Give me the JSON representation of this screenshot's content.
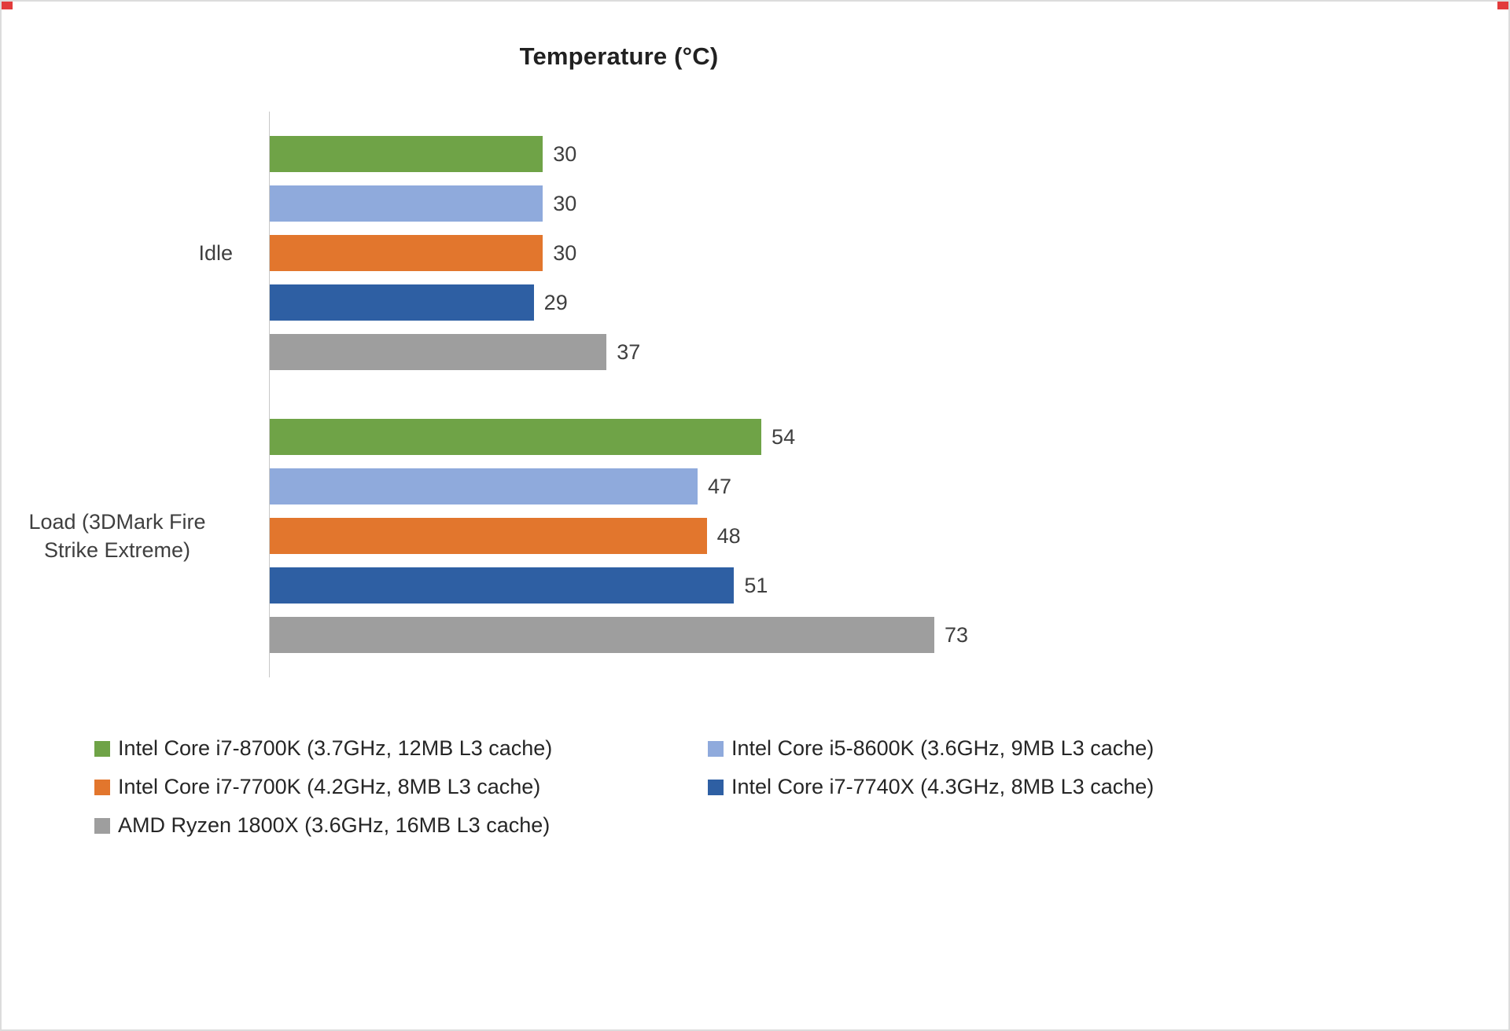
{
  "title": "Temperature (°C)",
  "chart_data": {
    "type": "bar",
    "orientation": "horizontal",
    "title": "Temperature (°C)",
    "categories": [
      "Idle",
      "Load (3DMark Fire Strike Extreme)"
    ],
    "series": [
      {
        "name": "Intel Core i7-8700K (3.7GHz, 12MB L3 cache)",
        "color": "#6fa347",
        "values": [
          30,
          54
        ]
      },
      {
        "name": "Intel Core i5-8600K (3.6GHz, 9MB L3 cache)",
        "color": "#8faadc",
        "values": [
          30,
          47
        ]
      },
      {
        "name": "Intel Core i7-7700K (4.2GHz, 8MB L3 cache)",
        "color": "#e2762d",
        "values": [
          30,
          48
        ]
      },
      {
        "name": "Intel Core i7-7740X (4.3GHz, 8MB L3 cache)",
        "color": "#2e5fa3",
        "values": [
          29,
          51
        ]
      },
      {
        "name": "AMD Ryzen 1800X (3.6GHz, 16MB L3 cache)",
        "color": "#9e9e9e",
        "values": [
          37,
          73
        ]
      }
    ],
    "xlim": [
      0,
      80
    ],
    "value_labels": true,
    "grid": false,
    "legend_position": "bottom",
    "axis_line_color": "#c8c8c8"
  }
}
